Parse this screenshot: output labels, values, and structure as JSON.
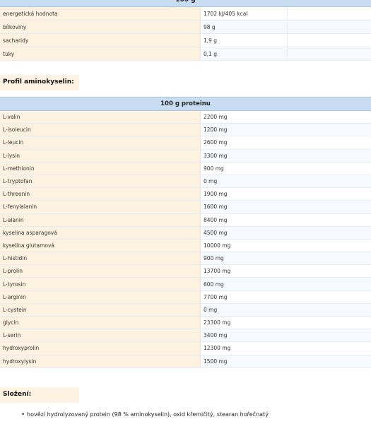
{
  "nutrition": {
    "header": "100 g",
    "rows": [
      {
        "label": "energetická hodnota",
        "value": "1702 kJ/405 kcal"
      },
      {
        "label": "bílkoviny",
        "value": "98 g"
      },
      {
        "label": "sacharidy",
        "value": "1,9 g"
      },
      {
        "label": "tuky",
        "value": "0,1 g"
      }
    ]
  },
  "amino_section_title": "Profil aminokyselin:",
  "amino": {
    "header": "100 g proteinu",
    "rows": [
      {
        "label": "L-valin",
        "value": "2200 mg"
      },
      {
        "label": "L-isoleucin",
        "value": "1200 mg"
      },
      {
        "label": "L-leucin",
        "value": "2600 mg"
      },
      {
        "label": "L-lysin",
        "value": "3300 mg"
      },
      {
        "label": "L-methionin",
        "value": "900 mg"
      },
      {
        "label": "L-tryptofan",
        "value": "0 mg"
      },
      {
        "label": "L-threonin",
        "value": "1900 mg"
      },
      {
        "label": "L-fenylalanin",
        "value": "1600 mg"
      },
      {
        "label": "L-alanin",
        "value": "8400 mg"
      },
      {
        "label": "kyselina asparagová",
        "value": "4500 mg"
      },
      {
        "label": "kyselina glutamová",
        "value": "10000 mg"
      },
      {
        "label": "L-histidin",
        "value": "900 mg"
      },
      {
        "label": "L-prolin",
        "value": "13700 mg"
      },
      {
        "label": "L-tyrosin",
        "value": "600 mg"
      },
      {
        "label": "L-arginin",
        "value": "7700 mg"
      },
      {
        "label": "L-cystein",
        "value": "0 mg"
      },
      {
        "label": "glycin",
        "value": "23300 mg"
      },
      {
        "label": "L-serin",
        "value": "3400 mg"
      },
      {
        "label": "hydroxyprolin",
        "value": "12300 mg"
      },
      {
        "label": "hydroxylysin",
        "value": "1500 mg"
      }
    ]
  },
  "composition_title": "Složení:",
  "composition_items": [
    "hovězí hydrolyzovaný protein (98 % aminokyselin), oxid křemičitý, stearan hořečnatý"
  ]
}
